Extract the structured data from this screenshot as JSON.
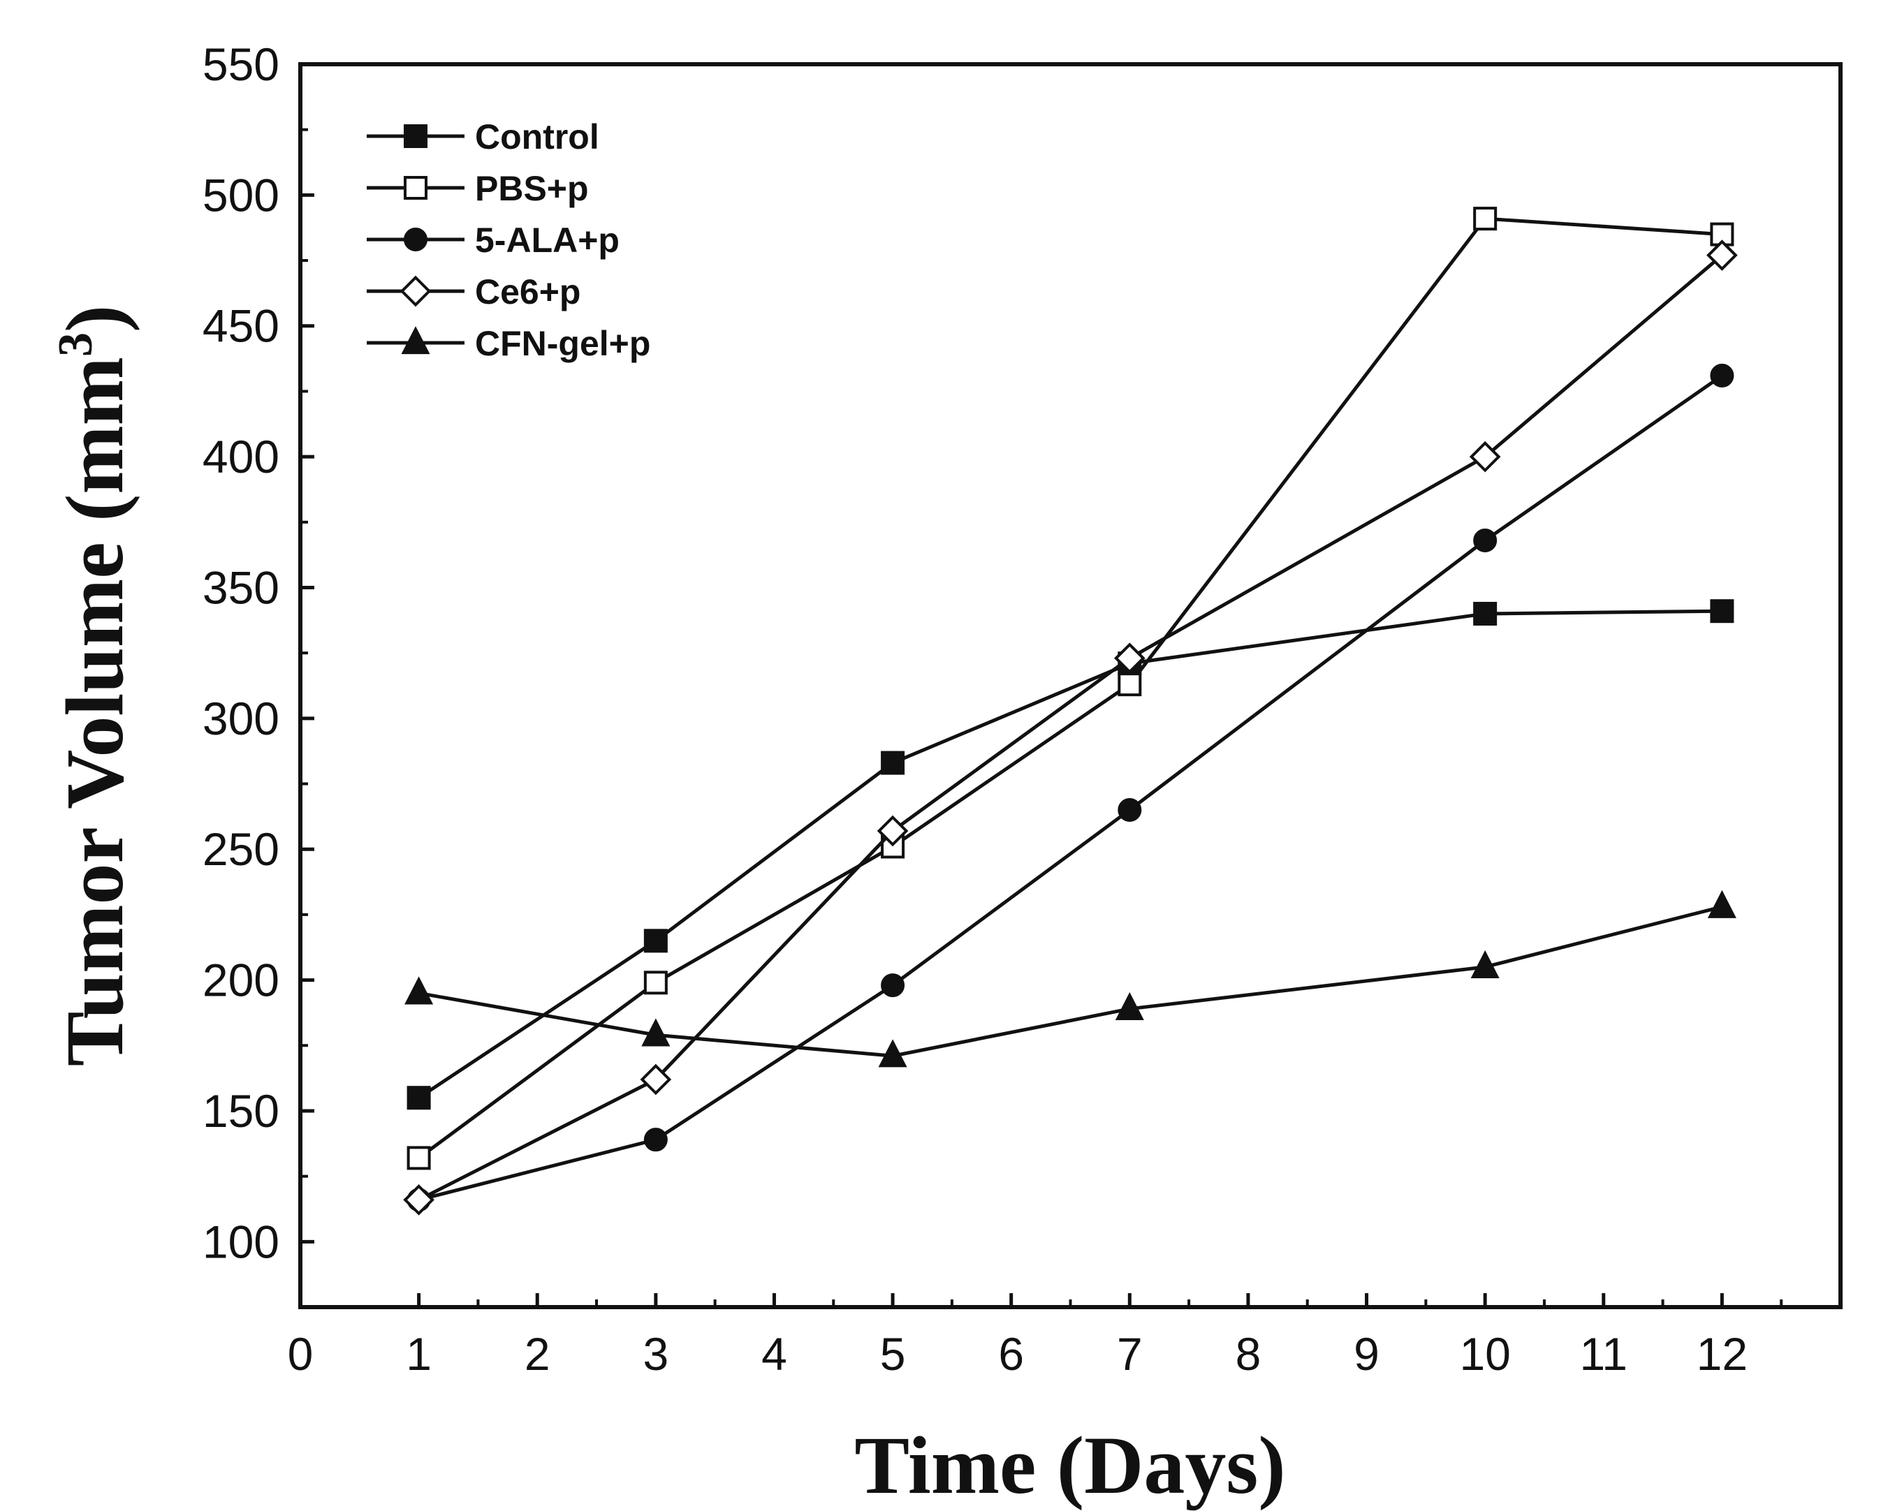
{
  "chart_data": {
    "type": "line",
    "title": "",
    "xlabel": "Time (Days)",
    "ylabel_main": "Tumor Volume (mm",
    "ylabel_sup": "3",
    "ylabel_close": ")",
    "xlim": [
      0,
      13
    ],
    "ylim": [
      75,
      550
    ],
    "x_ticks": [
      0,
      1,
      2,
      3,
      4,
      5,
      6,
      7,
      8,
      9,
      10,
      11,
      12
    ],
    "y_ticks": [
      100,
      150,
      200,
      250,
      300,
      350,
      400,
      450,
      500,
      550
    ],
    "x": [
      1,
      3,
      5,
      7,
      10,
      12
    ],
    "grid": false,
    "legend_position": "top-left",
    "series": [
      {
        "name": "Control",
        "marker": "square-filled",
        "values": [
          155,
          215,
          283,
          321,
          340,
          341
        ]
      },
      {
        "name": "PBS+p",
        "marker": "square-open",
        "values": [
          132,
          199,
          251,
          313,
          491,
          485
        ]
      },
      {
        "name": "5-ALA+p",
        "marker": "circle-filled",
        "values": [
          116,
          139,
          198,
          265,
          368,
          431
        ]
      },
      {
        "name": "Ce6+p",
        "marker": "diamond-open",
        "values": [
          116,
          162,
          257,
          323,
          400,
          477
        ]
      },
      {
        "name": "CFN-gel+p",
        "marker": "triangle-filled",
        "values": [
          195,
          179,
          171,
          189,
          205,
          228
        ]
      }
    ]
  }
}
